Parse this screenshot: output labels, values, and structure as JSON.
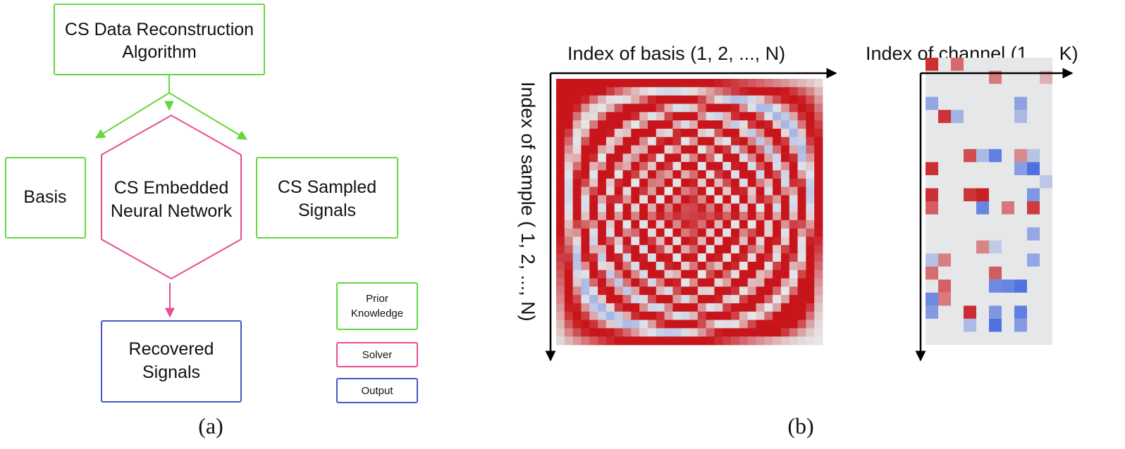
{
  "panel_a": {
    "caption": "(a)",
    "top_box": {
      "line1": "CS Data Reconstruction",
      "line2": "Algorithm"
    },
    "basis_box": {
      "label": "Basis"
    },
    "network_hex": {
      "line1": "CS Embedded",
      "line2": "Neural Network"
    },
    "sampled_box": {
      "line1": "CS Sampled",
      "line2": "Signals"
    },
    "recovered_box": {
      "line1": "Recovered",
      "line2": "Signals"
    },
    "legend": {
      "prior": {
        "line1": "Prior",
        "line2": "Knowledge"
      },
      "solver": "Solver",
      "output": "Output"
    }
  },
  "panel_b": {
    "caption": "(b)",
    "basis_axis_label": "Index of basis (1, 2, ..., N)",
    "sample_axis_label": "Index of sample ( 1, 2, ..., N)",
    "channel_axis_label": "Index of channel (1,..., K)"
  },
  "colors": {
    "prior_knowledge": "#63d93f",
    "solver": "#ea4b96",
    "output": "#4456c9",
    "heat_red": "#c8151b",
    "heat_blue": "#4f71e0",
    "heat_neutral": "#e6e7e8"
  }
}
